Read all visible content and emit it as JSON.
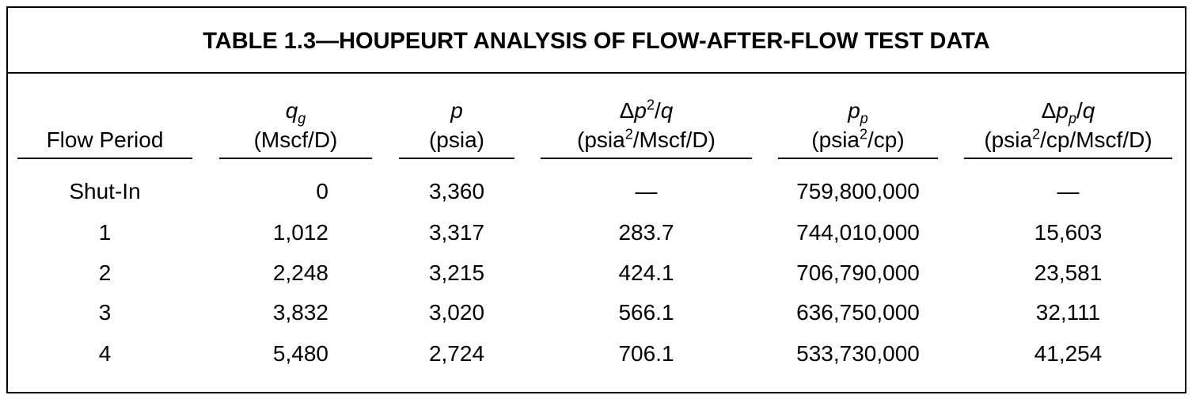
{
  "title": "TABLE 1.3—HOUPEURT ANALYSIS OF FLOW-AFTER-FLOW TEST DATA",
  "columns": [
    {
      "label": "Flow Period"
    },
    {
      "symbol": [
        "q",
        "g"
      ],
      "unit": [
        "(Mscf/D)"
      ]
    },
    {
      "symbol": [
        "p"
      ],
      "unit": [
        "(psia)"
      ]
    },
    {
      "symbol": [
        "Δ",
        "p",
        "2",
        "/",
        "q"
      ],
      "unit": [
        "(psia",
        "2",
        "/Mscf/D)"
      ]
    },
    {
      "symbol": [
        "p",
        "p"
      ],
      "unit": [
        "(psia",
        "2",
        "/cp)"
      ]
    },
    {
      "symbol": [
        "Δ",
        "p",
        "p",
        "/",
        "q"
      ],
      "unit": [
        "(psia",
        "2",
        "/cp/Mscf/D)"
      ]
    }
  ],
  "rows": [
    [
      "Shut-In",
      "0",
      "3,360",
      "—",
      "759,800,000",
      "—"
    ],
    [
      "1",
      "1,012",
      "3,317",
      "283.7",
      "744,010,000",
      "15,603"
    ],
    [
      "2",
      "2,248",
      "3,215",
      "424.1",
      "706,790,000",
      "23,581"
    ],
    [
      "3",
      "3,832",
      "3,020",
      "566.1",
      "636,750,000",
      "32,111"
    ],
    [
      "4",
      "5,480",
      "2,724",
      "706.1",
      "533,730,000",
      "41,254"
    ]
  ]
}
